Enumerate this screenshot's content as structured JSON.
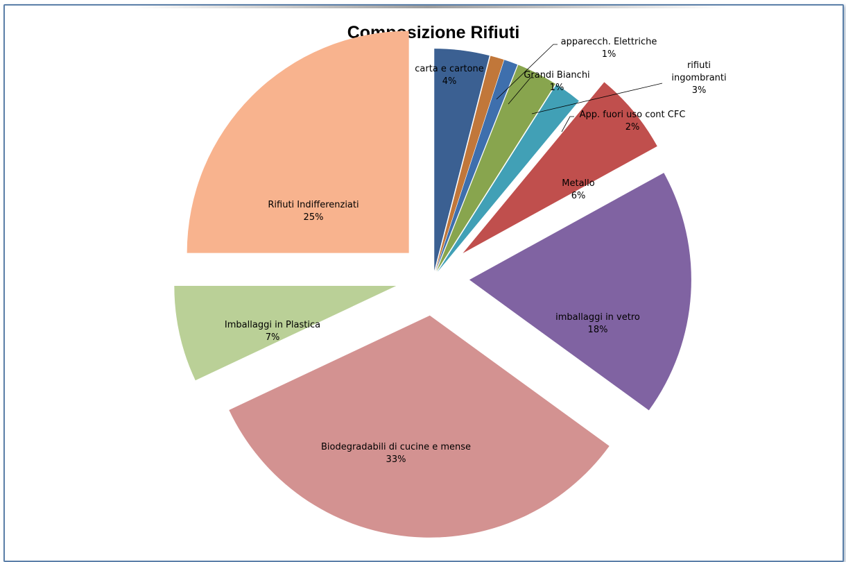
{
  "chart_data": {
    "type": "pie",
    "title": "Composizione Rifiuti",
    "exploded": true,
    "legend": "none",
    "slices": [
      {
        "label": "carta e cartone",
        "pct_label": "4%",
        "value": 4,
        "color": "#3b6092"
      },
      {
        "label": "apparecch. Elettriche",
        "pct_label": "1%",
        "value": 1,
        "color": "#c1773a"
      },
      {
        "label": "Grandi Bianchi",
        "pct_label": "1%",
        "value": 1,
        "color": "#3e6fad"
      },
      {
        "label": "rifiuti ingombranti",
        "pct_label": "3%",
        "value": 3,
        "color": "#88a54e"
      },
      {
        "label": "App. fuori uso cont CFC",
        "pct_label": "2%",
        "value": 2,
        "color": "#41a0b6"
      },
      {
        "label": "Metallo",
        "pct_label": "6%",
        "value": 6,
        "color": "#c04f4d"
      },
      {
        "label": "imballaggi in vetro",
        "pct_label": "18%",
        "value": 18,
        "color": "#8063a2"
      },
      {
        "label": "Biodegradabili di cucine e mense",
        "pct_label": "33%",
        "value": 33,
        "color": "#d39291"
      },
      {
        "label": "Imballaggi in Plastica",
        "pct_label": "7%",
        "value": 7,
        "color": "#bad097"
      },
      {
        "label": "Rifiuti Indifferenziati",
        "pct_label": "25%",
        "value": 25,
        "color": "#f8b38e"
      }
    ]
  }
}
